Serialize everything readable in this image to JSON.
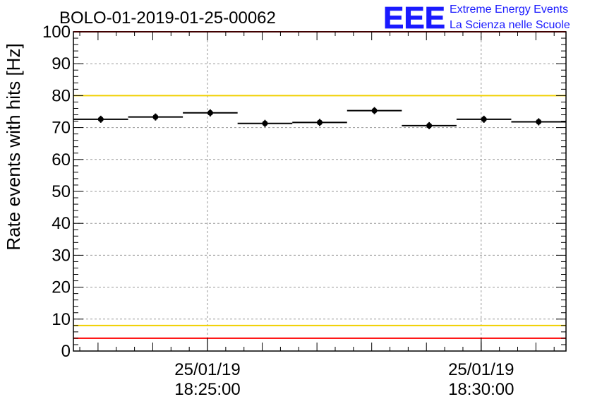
{
  "header": {
    "run_title": "BOLO-01-2019-01-25-00062",
    "logo_text": "EEE",
    "logo_line1": "Extreme Energy Events",
    "logo_line2": "La Scienza nelle Scuole"
  },
  "colors": {
    "logo": "#1a1aff",
    "data": "#000000",
    "red_limit": "#ff0000",
    "yellow_limit": "#f0d000",
    "grid": "#999999"
  },
  "chart_data": {
    "type": "scatter",
    "title": "BOLO-01-2019-01-25-00062",
    "ylabel": "Rate events with hits [Hz]",
    "xlabel": "",
    "ylim": [
      0,
      100
    ],
    "yticks": [
      0,
      10,
      20,
      30,
      40,
      50,
      60,
      70,
      80,
      90,
      100
    ],
    "xlim": [
      "2019-01-25 18:22:33",
      "2019-01-25 18:31:33"
    ],
    "xticks": [
      {
        "t": "2019-01-25 18:25:00",
        "date": "25/01/19",
        "time": "18:25:00"
      },
      {
        "t": "2019-01-25 18:30:00",
        "date": "25/01/19",
        "time": "18:30:00"
      }
    ],
    "grid": true,
    "horizontal_lines": [
      {
        "y": 100,
        "color": "#ff0000"
      },
      {
        "y": 80,
        "color": "#f0d000"
      },
      {
        "y": 8,
        "color": "#f0d000"
      },
      {
        "y": 4,
        "color": "#ff0000"
      }
    ],
    "series": [
      {
        "points": [
          {
            "x_start": "2019-01-25 18:22:33",
            "x_end": "2019-01-25 18:23:33",
            "y": 72.6
          },
          {
            "x_start": "2019-01-25 18:23:33",
            "x_end": "2019-01-25 18:24:33",
            "y": 73.3
          },
          {
            "x_start": "2019-01-25 18:24:33",
            "x_end": "2019-01-25 18:25:33",
            "y": 74.6
          },
          {
            "x_start": "2019-01-25 18:25:33",
            "x_end": "2019-01-25 18:26:33",
            "y": 71.3
          },
          {
            "x_start": "2019-01-25 18:26:33",
            "x_end": "2019-01-25 18:27:33",
            "y": 71.6
          },
          {
            "x_start": "2019-01-25 18:27:33",
            "x_end": "2019-01-25 18:28:33",
            "y": 75.3
          },
          {
            "x_start": "2019-01-25 18:28:33",
            "x_end": "2019-01-25 18:29:33",
            "y": 70.6
          },
          {
            "x_start": "2019-01-25 18:29:33",
            "x_end": "2019-01-25 18:30:33",
            "y": 72.6
          },
          {
            "x_start": "2019-01-25 18:30:33",
            "x_end": "2019-01-25 18:31:33",
            "y": 71.8
          }
        ]
      }
    ]
  }
}
